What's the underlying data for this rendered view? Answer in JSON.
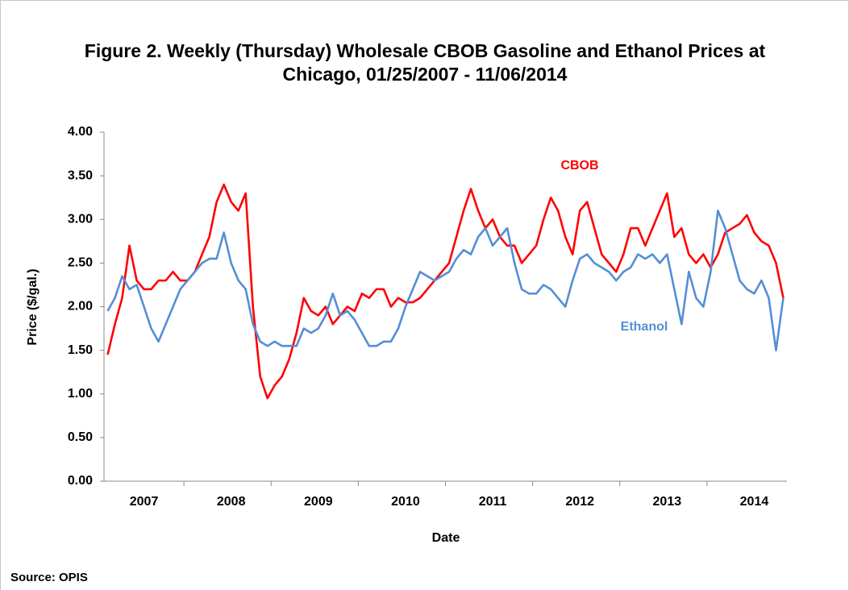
{
  "chart_data": {
    "type": "line",
    "title": "Figure 2. Weekly (Thursday) Wholesale CBOB Gasoline and Ethanol Prices at Chicago, 01/25/2007 - 11/06/2014",
    "x_label": "Date",
    "y_label": "Price ($/gal.)",
    "source": "Source: OPIS",
    "categories": [
      null,
      null,
      null,
      null,
      null,
      "2007",
      null,
      null,
      null,
      null,
      null,
      null,
      null,
      null,
      null,
      null,
      null,
      "2008",
      null,
      null,
      null,
      null,
      null,
      null,
      null,
      null,
      null,
      null,
      null,
      "2009",
      null,
      null,
      null,
      null,
      null,
      null,
      null,
      null,
      null,
      null,
      null,
      "2010",
      null,
      null,
      null,
      null,
      null,
      null,
      null,
      null,
      null,
      null,
      null,
      "2011",
      null,
      null,
      null,
      null,
      null,
      null,
      null,
      null,
      null,
      null,
      null,
      "2012",
      null,
      null,
      null,
      null,
      null,
      null,
      null,
      null,
      null,
      null,
      null,
      "2013",
      null,
      null,
      null,
      null,
      null,
      null,
      null,
      null,
      null,
      null,
      null,
      "2014",
      null,
      null,
      null,
      null
    ],
    "series": [
      {
        "name": "CBOB",
        "color": "#ff0000",
        "values": [
          1.45,
          1.8,
          2.1,
          2.7,
          2.3,
          2.2,
          2.2,
          2.3,
          2.3,
          2.4,
          2.3,
          2.3,
          2.4,
          2.6,
          2.8,
          3.2,
          3.4,
          3.2,
          3.1,
          3.3,
          2.0,
          1.2,
          0.95,
          1.1,
          1.2,
          1.4,
          1.7,
          2.1,
          1.95,
          1.9,
          2.0,
          1.8,
          1.9,
          2.0,
          1.95,
          2.15,
          2.1,
          2.2,
          2.2,
          2.0,
          2.1,
          2.05,
          2.05,
          2.1,
          2.2,
          2.3,
          2.4,
          2.5,
          2.8,
          3.1,
          3.35,
          3.1,
          2.9,
          3.0,
          2.8,
          2.7,
          2.7,
          2.5,
          2.6,
          2.7,
          3.0,
          3.25,
          3.1,
          2.8,
          2.6,
          3.1,
          3.2,
          2.9,
          2.6,
          2.5,
          2.4,
          2.6,
          2.9,
          2.9,
          2.7,
          2.9,
          3.1,
          3.3,
          2.8,
          2.9,
          2.6,
          2.5,
          2.6,
          2.45,
          2.6,
          2.85,
          2.9,
          2.95,
          3.05,
          2.85,
          2.75,
          2.7,
          2.5,
          2.1
        ]
      },
      {
        "name": "Ethanol",
        "color": "#558ed5",
        "values": [
          1.95,
          2.1,
          2.35,
          2.2,
          2.25,
          2.0,
          1.75,
          1.6,
          1.8,
          2.0,
          2.2,
          2.3,
          2.4,
          2.5,
          2.55,
          2.55,
          2.85,
          2.5,
          2.3,
          2.2,
          1.8,
          1.6,
          1.55,
          1.6,
          1.55,
          1.55,
          1.55,
          1.75,
          1.7,
          1.75,
          1.9,
          2.15,
          1.9,
          1.95,
          1.85,
          1.7,
          1.55,
          1.55,
          1.6,
          1.6,
          1.75,
          2.0,
          2.2,
          2.4,
          2.35,
          2.3,
          2.35,
          2.4,
          2.55,
          2.65,
          2.6,
          2.8,
          2.9,
          2.7,
          2.8,
          2.9,
          2.5,
          2.2,
          2.15,
          2.15,
          2.25,
          2.2,
          2.1,
          2.0,
          2.3,
          2.55,
          2.6,
          2.5,
          2.45,
          2.4,
          2.3,
          2.4,
          2.45,
          2.6,
          2.55,
          2.6,
          2.5,
          2.6,
          2.2,
          1.8,
          2.4,
          2.1,
          2.0,
          2.4,
          3.1,
          2.9,
          2.6,
          2.3,
          2.2,
          2.15,
          2.3,
          2.1,
          1.5,
          2.1
        ]
      }
    ],
    "ylim": [
      0,
      4
    ],
    "yticks": [
      {
        "value": 0,
        "label": "0.00"
      },
      {
        "value": 0.5,
        "label": "0.50"
      },
      {
        "value": 1,
        "label": "1.00"
      },
      {
        "value": 1.5,
        "label": "1.50"
      },
      {
        "value": 2,
        "label": "2.00"
      },
      {
        "value": 2.5,
        "label": "2.50"
      },
      {
        "value": 3,
        "label": "3.00"
      },
      {
        "value": 3.5,
        "label": "3.50"
      },
      {
        "value": 4,
        "label": "4.00"
      }
    ],
    "grid": false
  }
}
